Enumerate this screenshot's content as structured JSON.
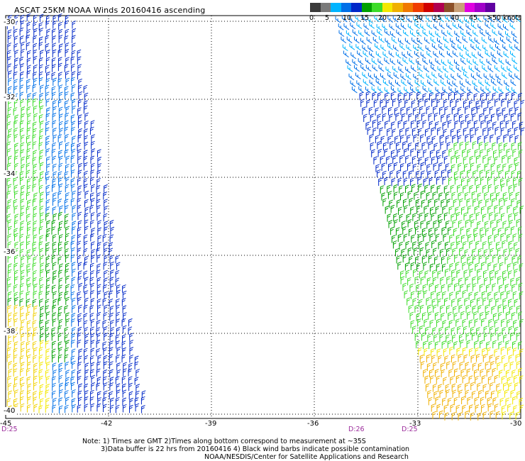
{
  "title": "ASCAT 25KM NOAA Winds 20160416 ascending",
  "colorbar": {
    "labels": [
      "0",
      "5",
      "10",
      "15",
      "20",
      "25",
      "30",
      "35",
      "40",
      "45",
      ">50 knots"
    ],
    "colors": [
      "#3a3a3a",
      "#7a7a7a",
      "#00b4ff",
      "#0070e8",
      "#0028c8",
      "#00a000",
      "#3cdc28",
      "#f4e800",
      "#f0b000",
      "#f07800",
      "#f03c00",
      "#d00000",
      "#b00050",
      "#8c5028",
      "#c8a078",
      "#e000e0",
      "#a000c8",
      "#6000a0"
    ]
  },
  "axes": {
    "x_ticks": [
      "-45",
      "-42",
      "-39",
      "-36",
      "-33",
      "-30"
    ],
    "y_ticks": [
      "-30",
      "-32",
      "-34",
      "-36",
      "-38",
      "-40"
    ]
  },
  "time_labels": [
    "D:25",
    "D:26",
    "D:25"
  ],
  "notes": {
    "line1": "Note: 1) Times are GMT 2)Times along bottom correspond to measurement at ~35S",
    "line2": "3)Data buffer is 22 hrs from 20160416 4) Black wind barbs indicate possible contamination",
    "line3": "NOAA/NESDIS/Center for Satellite Applications and Research"
  }
}
